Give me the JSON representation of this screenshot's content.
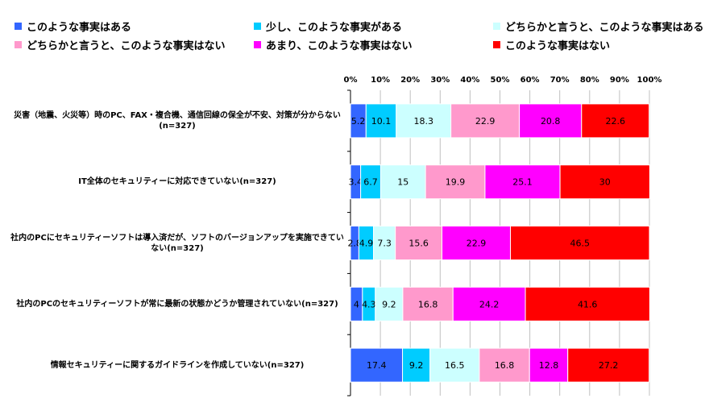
{
  "chart_data": {
    "type": "bar",
    "orientation": "horizontal",
    "stacked": true,
    "x_ticks": [
      "0%",
      "10%",
      "20%",
      "30%",
      "40%",
      "50%",
      "60%",
      "70%",
      "80%",
      "90%",
      "100%"
    ],
    "xlim": [
      0,
      100
    ],
    "legend_position": "top",
    "categories": [
      "災害（地震、火災等）時のPC、FAX・複合機、通信回線の保全が不安、対策が分からない(n=327)",
      "IT全体のセキュリティーに対応できていない(n=327)",
      "社内のPCにセキュリティーソフトは導入済だが、ソフトのバージョンアップを実施できていない(n=327)",
      "社内のPCのセキュリティーソフトが常に最新の状態かどうか管理されていない(n=327)",
      "情報セキュリティーに関するガイドラインを作成していない(n=327)"
    ],
    "series": [
      {
        "name": "このような事実はある",
        "color": "#3366ff",
        "values": [
          5.2,
          3.4,
          2.8,
          4,
          17.4
        ]
      },
      {
        "name": "少し、このような事実がある",
        "color": "#00ccff",
        "values": [
          10.1,
          6.7,
          4.9,
          4.3,
          9.2
        ]
      },
      {
        "name": "どちらかと言うと、このような事実はある",
        "color": "#ccffff",
        "values": [
          18.3,
          15,
          7.3,
          9.2,
          16.5
        ]
      },
      {
        "name": "どちらかと言うと、このような事実はない",
        "color": "#ff99cc",
        "values": [
          22.9,
          19.9,
          15.6,
          16.8,
          16.8
        ]
      },
      {
        "name": "あまり、このような事実はない",
        "color": "#ff00ff",
        "values": [
          20.8,
          25.1,
          22.9,
          24.2,
          12.8
        ]
      },
      {
        "name": "このような事実はない",
        "color": "#ff0000",
        "values": [
          22.6,
          30,
          46.5,
          41.6,
          27.2
        ]
      }
    ]
  }
}
